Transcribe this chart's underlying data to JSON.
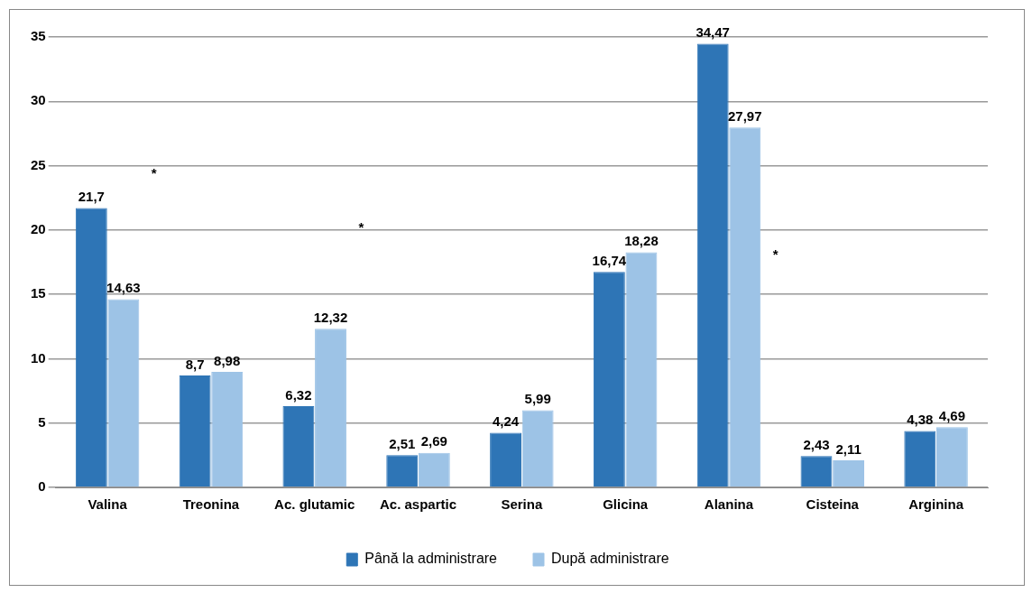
{
  "chart_data": {
    "type": "bar",
    "categories": [
      "Valina",
      "Treonina",
      "Ac. glutamic",
      "Ac. aspartic",
      "Serina",
      "Glicina",
      "Alanina",
      "Cisteina",
      "Arginina"
    ],
    "series": [
      {
        "name": "Până la administrare",
        "color": "#2e75b6",
        "values": [
          21.7,
          8.7,
          6.32,
          2.51,
          4.24,
          16.74,
          34.47,
          2.43,
          4.38
        ],
        "value_labels": [
          "21,7",
          "8,7",
          "6,32",
          "2,51",
          "4,24",
          "16,74",
          "34,47",
          "2,43",
          "4,38"
        ]
      },
      {
        "name": "După administrare",
        "color": "#9dc3e6",
        "values": [
          14.63,
          8.98,
          12.32,
          2.69,
          5.99,
          18.28,
          27.97,
          2.11,
          4.69
        ],
        "value_labels": [
          "14,63",
          "8,98",
          "12,32",
          "2,69",
          "5,99",
          "18,28",
          "27,97",
          "2,11",
          "4,69"
        ]
      }
    ],
    "ylim": [
      0,
      35
    ],
    "yticks": [
      0,
      5,
      10,
      15,
      20,
      25,
      30,
      35
    ],
    "grid": "y",
    "legend": "bottom",
    "annotations": [
      "*",
      "*",
      "*"
    ]
  }
}
